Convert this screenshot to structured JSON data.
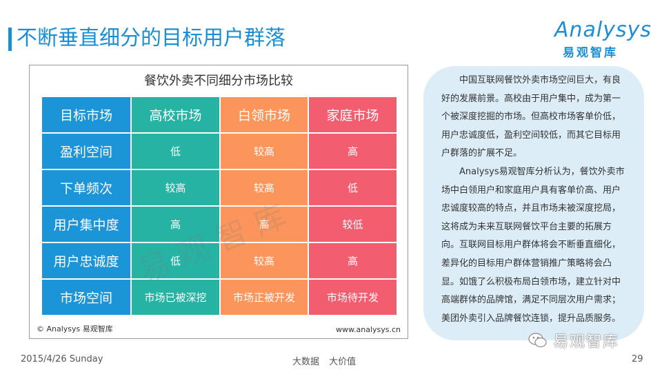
{
  "slide": {
    "title": "不断垂直细分的目标用户群落",
    "logo": {
      "wordmark": "Analysys",
      "cn": "易观智库"
    }
  },
  "panel": {
    "title": "餐饮外卖不同细分市场比较",
    "watermark": "易观智库",
    "source_left": "© Analysys 易观智库",
    "source_right": "www.analysys.cn",
    "table": {
      "header": [
        "目标市场",
        "高校市场",
        "白领市场",
        "家庭市场"
      ],
      "rows": [
        [
          "盈利空间",
          "低",
          "较高",
          "高"
        ],
        [
          "下单频次",
          "较高",
          "较高",
          "低"
        ],
        [
          "用户集中度",
          "高",
          "高",
          "较低"
        ],
        [
          "用户忠诚度",
          "低",
          "较高",
          "高"
        ],
        [
          "市场空间",
          "市场已被深挖",
          "市场正被开发",
          "市场待开发"
        ]
      ]
    },
    "colors": {
      "col0": "#1c95d8",
      "col1": "#27b3a4",
      "col2": "#fb955c",
      "col3": "#f35d70"
    }
  },
  "analysis": {
    "para1": "中国互联网餐饮外卖市场空间巨大，有良好的发展前景。高校由于用户集中，成为第一个被深度挖掘的市场。但高校市场客单价低，用户忠诚度低，盈利空间较低，而其它目标用户群落的扩展不足。",
    "para2": "Analysys易观智库分析认为，餐饮外卖市场中白领用户和家庭用户具有客单价高、用户忠诚度较高的特点，并且市场未被深度挖局，这将成为未来互联网餐饮平台主要的拓展方向。互联网目标用户群体将会不断垂直细化，差异化的目标用户群体营销推广策略将会凸显。如饿了么积极布局白领市场，建立针对中高端群体的品牌馆，满足不同层次用户需求；美团外卖引入品牌餐饮连锁，提升品质服务。"
  },
  "footer": {
    "date": "2015/4/26 Sunday",
    "center": "大数据 大价值",
    "page": "29"
  },
  "wechat": {
    "name": "易观智库",
    "icon": "wechat-icon"
  }
}
